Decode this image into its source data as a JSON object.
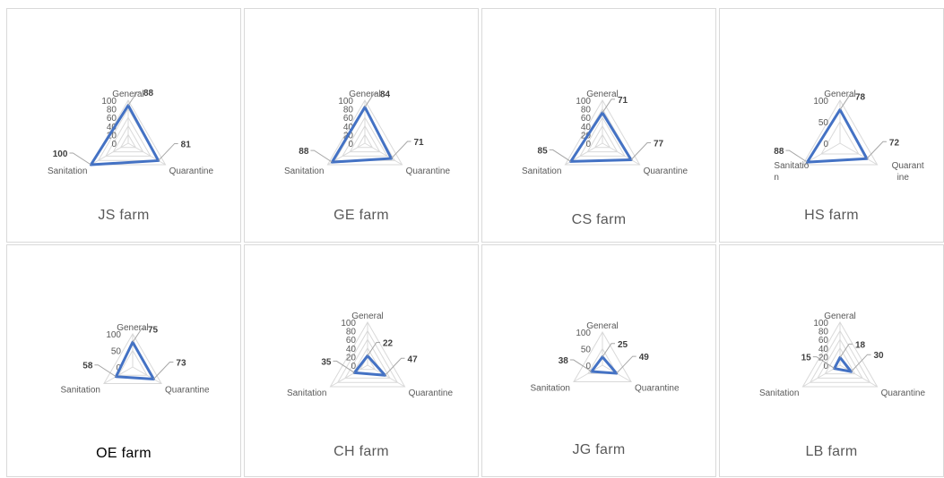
{
  "chart_data": [
    {
      "type": "radar",
      "title": "JS farm",
      "categories": [
        "General",
        "Quarantine",
        "Sanitation"
      ],
      "values": [
        88,
        81,
        100
      ],
      "ticks": [
        "0",
        "20",
        "40",
        "60",
        "80",
        "100"
      ],
      "rlim": [
        0,
        100
      ]
    },
    {
      "type": "radar",
      "title": "GE farm",
      "categories": [
        "General",
        "Quarantine",
        "Sanitation"
      ],
      "values": [
        84,
        71,
        88
      ],
      "ticks": [
        "0",
        "20",
        "40",
        "60",
        "80",
        "100"
      ],
      "rlim": [
        0,
        100
      ]
    },
    {
      "type": "radar",
      "title": "CS farm",
      "categories": [
        "General",
        "Quarantine",
        "Sanitation"
      ],
      "values": [
        71,
        77,
        85
      ],
      "ticks": [
        "0",
        "20",
        "40",
        "60",
        "80",
        "100"
      ],
      "rlim": [
        0,
        100
      ]
    },
    {
      "type": "radar",
      "title": "HS farm",
      "categories": [
        "General",
        "Quarantine",
        "Sanitation"
      ],
      "values": [
        78,
        72,
        88
      ],
      "ticks": [
        "0",
        "50",
        "100"
      ],
      "rlim": [
        0,
        100
      ]
    },
    {
      "type": "radar",
      "title": "OE farm",
      "categories": [
        "General",
        "Quarantine",
        "Sanitation"
      ],
      "values": [
        75,
        73,
        58
      ],
      "ticks": [
        "0",
        "50",
        "100"
      ],
      "rlim": [
        0,
        100
      ]
    },
    {
      "type": "radar",
      "title": "CH farm",
      "categories": [
        "General",
        "Quarantine",
        "Sanitation"
      ],
      "values": [
        22,
        47,
        35
      ],
      "ticks": [
        "0",
        "20",
        "40",
        "60",
        "80",
        "100"
      ],
      "rlim": [
        0,
        100
      ]
    },
    {
      "type": "radar",
      "title": "JG farm",
      "categories": [
        "General",
        "Quarantine",
        "Sanitation"
      ],
      "values": [
        25,
        49,
        38
      ],
      "ticks": [
        "0",
        "50",
        "100"
      ],
      "rlim": [
        0,
        100
      ]
    },
    {
      "type": "radar",
      "title": "LB farm",
      "categories": [
        "General",
        "Quarantine",
        "Sanitation"
      ],
      "values": [
        18,
        30,
        15
      ],
      "ticks": [
        "0",
        "20",
        "40",
        "60",
        "80",
        "100"
      ],
      "rlim": [
        0,
        100
      ]
    }
  ],
  "colors": {
    "series": "#4472c4",
    "grid": "#d9d9d9",
    "leader": "#a6a6a6",
    "text": "#595959"
  }
}
